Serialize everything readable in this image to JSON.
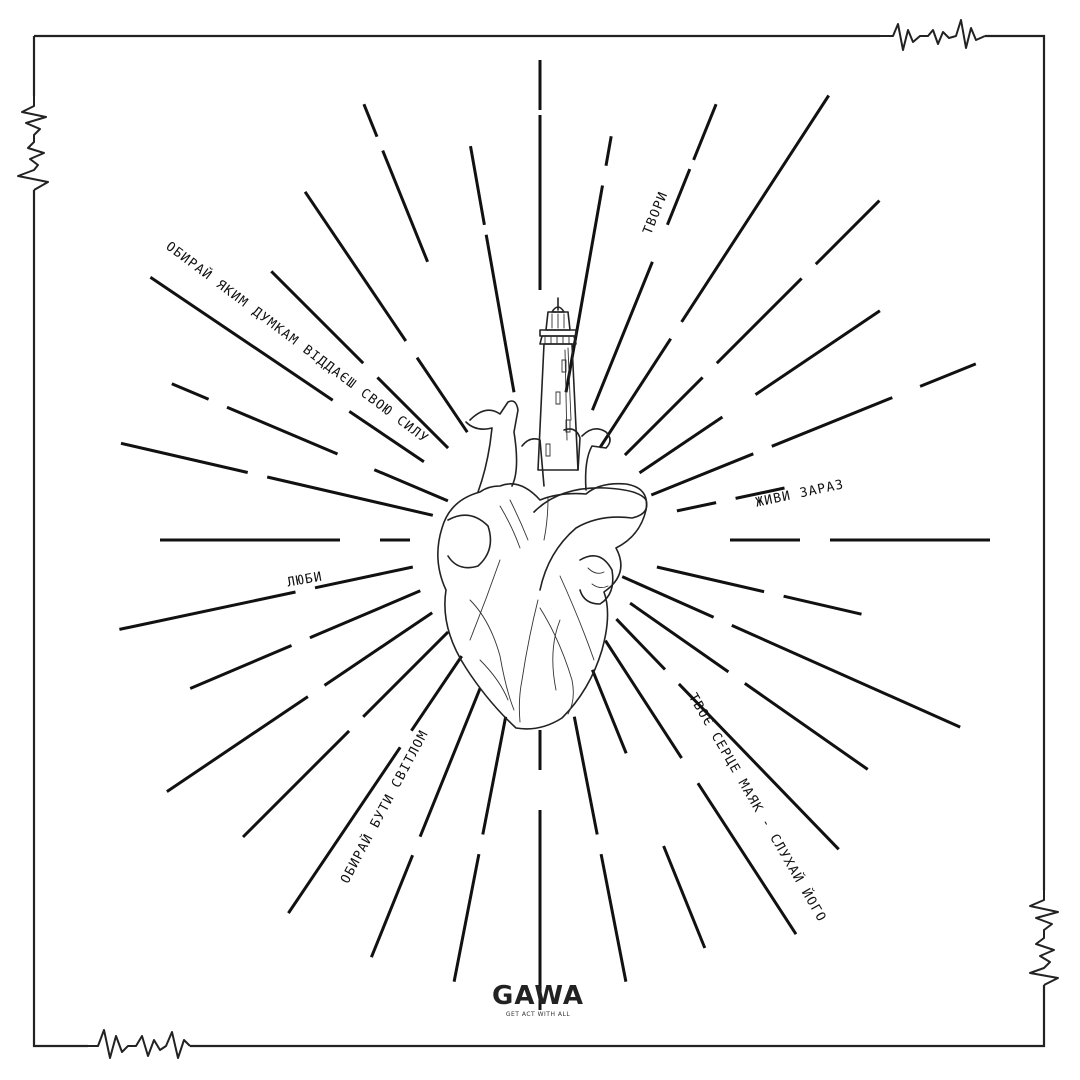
{
  "slogans": {
    "tvory": "ТВОРИ",
    "obyrai_dumkam": "ОБИРАЙ ЯКИМ ДУМКАМ ВІДДАЄШ СВОЮ СИЛУ",
    "zhyvy_zaraz": "ЖИВИ ЗАРАЗ",
    "liuby": "ЛЮБИ",
    "obyrai_svitlom": "ОБИРАЙ БУТИ СВІТЛОМ",
    "tvoie_sertse": "ТВОЄ СЕРЦЕ МАЯК - СЛУХАЙ ЙОГО"
  },
  "brand": {
    "logo": "GAWA",
    "tagline": "GET ACT WITH ALL"
  },
  "colors": {
    "ink": "#111111",
    "background": "#ffffff"
  },
  "icons": [
    "heart-illustration",
    "lighthouse-illustration",
    "heartbeat-pulse-icon"
  ]
}
